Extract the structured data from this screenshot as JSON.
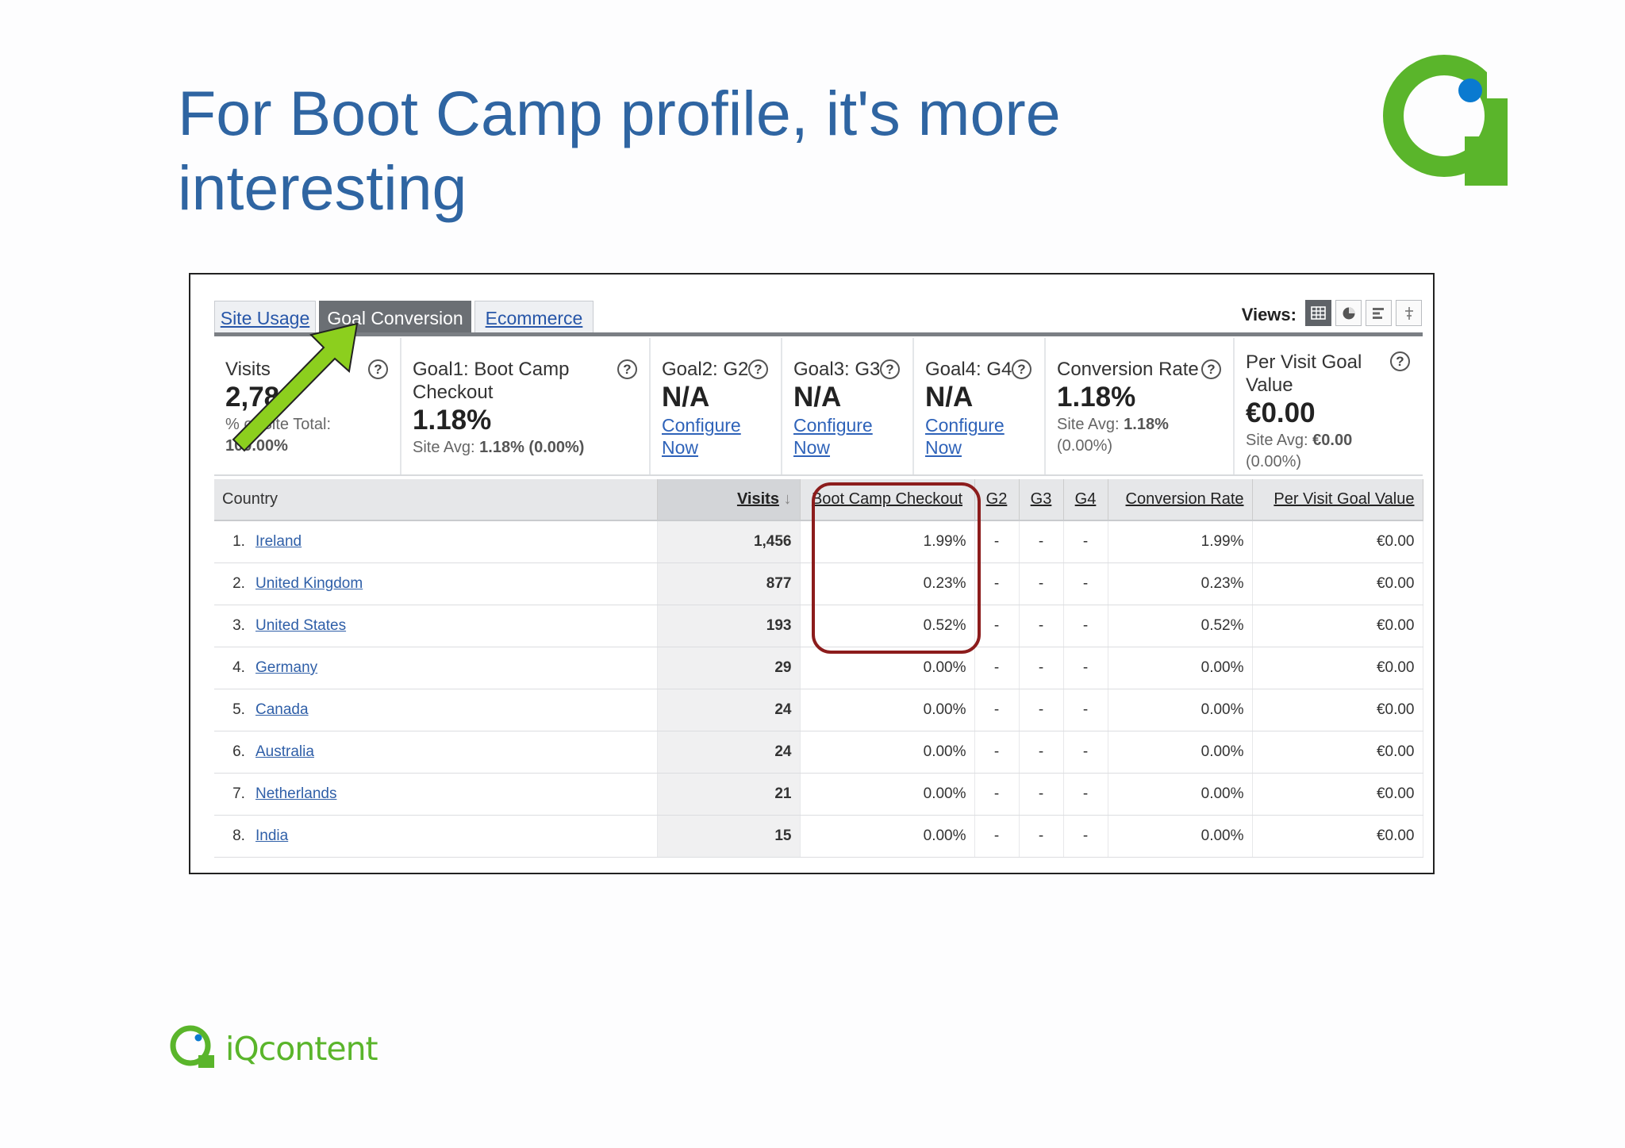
{
  "slide": {
    "title_line1": "For Boot Camp profile, it's more",
    "title_line2": "interesting",
    "footer_logo_text": "iQcontent",
    "colors": {
      "title": "#2f65a2",
      "logo_green": "#5ab52b",
      "logo_blue": "#0a7ad0",
      "highlight": "#8c1c1c",
      "arrow": "#8ccf1e"
    }
  },
  "tabs": [
    "Site Usage",
    "Goal Conversion",
    "Ecommerce"
  ],
  "views": {
    "label": "Views:",
    "icons": [
      "table-view-icon",
      "pie-view-icon",
      "bar-view-icon",
      "compare-view-icon"
    ]
  },
  "metrics": [
    {
      "label": "Visits",
      "value": "2,78",
      "sub_label": "% of Site Total:",
      "sub_value": "100.00%"
    },
    {
      "label": "Goal1: Boot Camp Checkout",
      "value": "1.18%",
      "sub_label": "Site Avg:",
      "sub_value": "1.18% (0.00%)"
    },
    {
      "label": "Goal2: G2",
      "value": "N/A",
      "link": "Configure Now"
    },
    {
      "label": "Goal3: G3",
      "value": "N/A",
      "link": "Configure Now"
    },
    {
      "label": "Goal4: G4",
      "value": "N/A",
      "link": "Configure Now"
    },
    {
      "label": "Conversion Rate",
      "value": "1.18%",
      "sub_label": "Site Avg:",
      "sub_value": "1.18%",
      "sub_extra": "(0.00%)"
    },
    {
      "label": "Per Visit Goal Value",
      "value": "€0.00",
      "sub_label": "Site Avg:",
      "sub_value": "€0.00",
      "sub_extra": "(0.00%)"
    }
  ],
  "table": {
    "headers": [
      "Country",
      "Visits",
      "Boot Camp Checkout",
      "G2",
      "G3",
      "G4",
      "Conversion Rate",
      "Per Visit Goal Value"
    ],
    "rows": [
      {
        "num": "1.",
        "country": "Ireland",
        "visits": "1,456",
        "checkout": "1.99%",
        "g2": "-",
        "g3": "-",
        "g4": "-",
        "conv": "1.99%",
        "value": "€0.00"
      },
      {
        "num": "2.",
        "country": "United Kingdom",
        "visits": "877",
        "checkout": "0.23%",
        "g2": "-",
        "g3": "-",
        "g4": "-",
        "conv": "0.23%",
        "value": "€0.00"
      },
      {
        "num": "3.",
        "country": "United States",
        "visits": "193",
        "checkout": "0.52%",
        "g2": "-",
        "g3": "-",
        "g4": "-",
        "conv": "0.52%",
        "value": "€0.00"
      },
      {
        "num": "4.",
        "country": "Germany",
        "visits": "29",
        "checkout": "0.00%",
        "g2": "-",
        "g3": "-",
        "g4": "-",
        "conv": "0.00%",
        "value": "€0.00"
      },
      {
        "num": "5.",
        "country": "Canada",
        "visits": "24",
        "checkout": "0.00%",
        "g2": "-",
        "g3": "-",
        "g4": "-",
        "conv": "0.00%",
        "value": "€0.00"
      },
      {
        "num": "6.",
        "country": "Australia",
        "visits": "24",
        "checkout": "0.00%",
        "g2": "-",
        "g3": "-",
        "g4": "-",
        "conv": "0.00%",
        "value": "€0.00"
      },
      {
        "num": "7.",
        "country": "Netherlands",
        "visits": "21",
        "checkout": "0.00%",
        "g2": "-",
        "g3": "-",
        "g4": "-",
        "conv": "0.00%",
        "value": "€0.00"
      },
      {
        "num": "8.",
        "country": "India",
        "visits": "15",
        "checkout": "0.00%",
        "g2": "-",
        "g3": "-",
        "g4": "-",
        "conv": "0.00%",
        "value": "€0.00"
      }
    ]
  }
}
